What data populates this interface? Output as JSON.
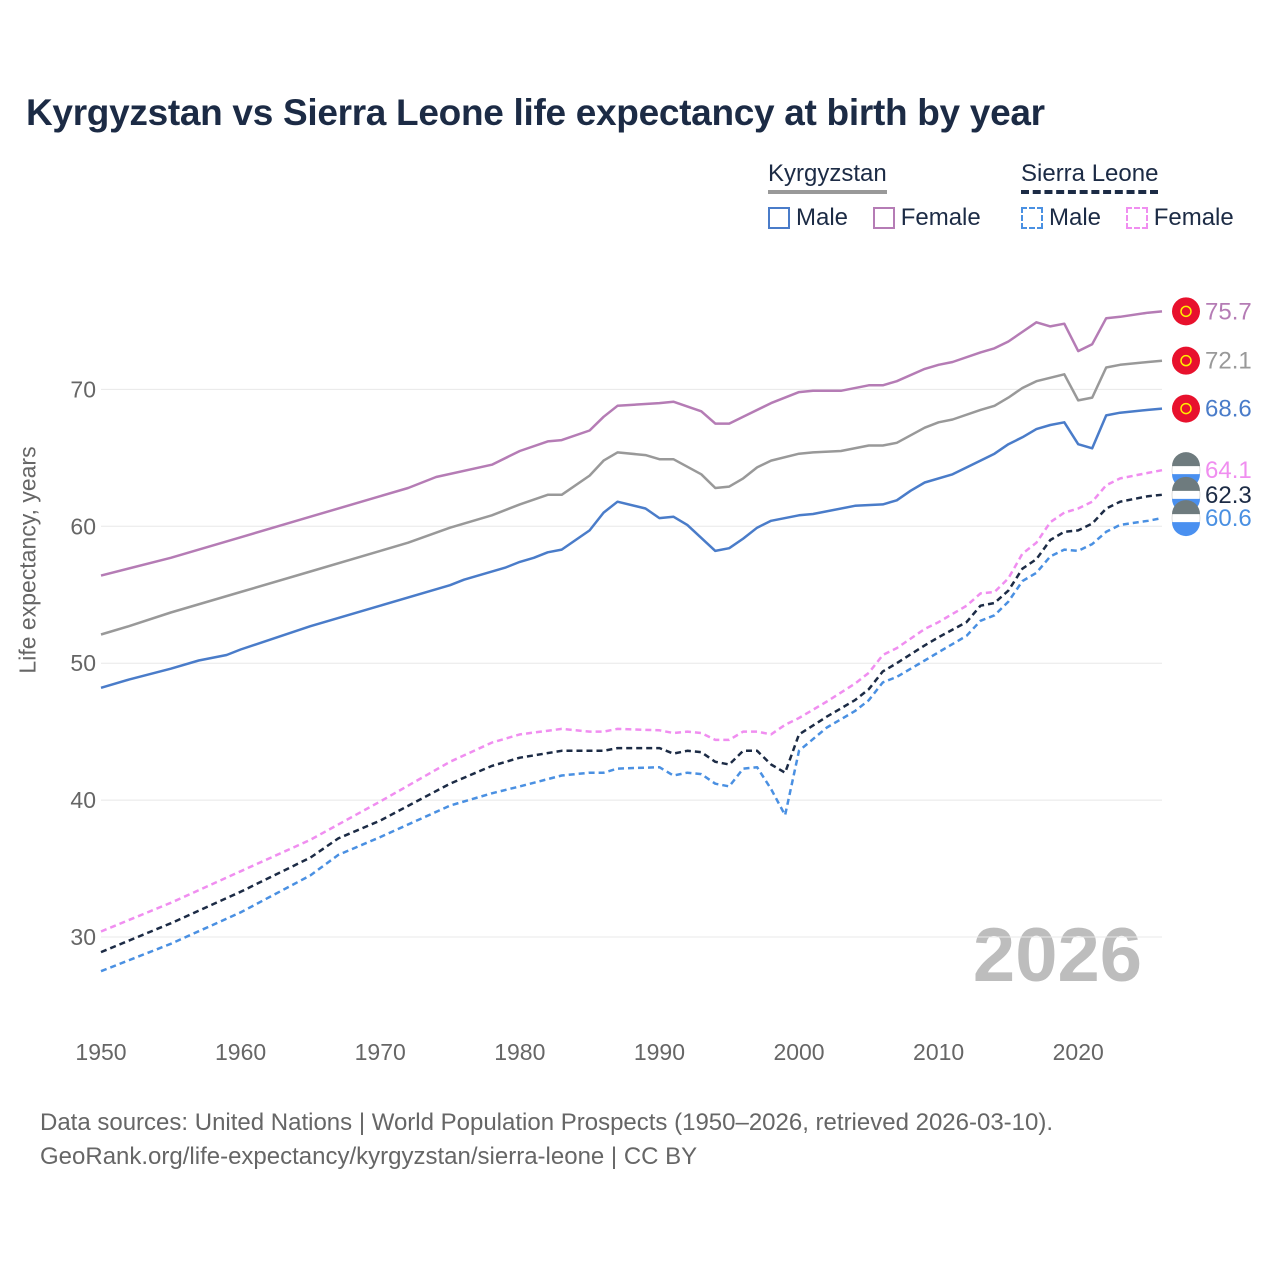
{
  "chart_data": {
    "type": "line",
    "title": "Kyrgyzstan vs Sierra Leone life expectancy at birth by year",
    "xlabel": "",
    "ylabel": "Life expectancy, years",
    "xlim": [
      1950,
      2026
    ],
    "ylim": [
      25,
      78
    ],
    "xticks": [
      1950,
      1960,
      1970,
      1980,
      1990,
      2000,
      2010,
      2020
    ],
    "yticks": [
      30,
      40,
      50,
      60,
      70
    ],
    "current_year": "2026",
    "legend": {
      "groups": [
        {
          "name": "Kyrgyzstan",
          "style": "solid",
          "color": "#999999",
          "items": [
            {
              "label": "Male",
              "color": "#4a7cc9"
            },
            {
              "label": "Female",
              "color": "#b57cb5"
            }
          ]
        },
        {
          "name": "Sierra Leone",
          "style": "dashed",
          "color": "#1c2b45",
          "items": [
            {
              "label": "Male",
              "color": "#4a90e2"
            },
            {
              "label": "Female",
              "color": "#f08ef0"
            }
          ]
        }
      ]
    },
    "series": [
      {
        "name": "Kyrgyzstan Female",
        "color": "#b57cb5",
        "dash": false,
        "end_label": "75.7",
        "flag": "kyrgyzstan",
        "points": [
          [
            1950,
            56.4
          ],
          [
            1955,
            57.7
          ],
          [
            1960,
            59.2
          ],
          [
            1965,
            60.7
          ],
          [
            1970,
            62.2
          ],
          [
            1972,
            62.8
          ],
          [
            1974,
            63.6
          ],
          [
            1978,
            64.5
          ],
          [
            1980,
            65.5
          ],
          [
            1982,
            66.2
          ],
          [
            1983,
            66.3
          ],
          [
            1985,
            67.0
          ],
          [
            1986,
            68.0
          ],
          [
            1987,
            68.8
          ],
          [
            1990,
            69.0
          ],
          [
            1991,
            69.1
          ],
          [
            1993,
            68.4
          ],
          [
            1994,
            67.5
          ],
          [
            1995,
            67.5
          ],
          [
            1996,
            68.0
          ],
          [
            1998,
            69.0
          ],
          [
            2000,
            69.8
          ],
          [
            2001,
            69.9
          ],
          [
            2003,
            69.9
          ],
          [
            2005,
            70.3
          ],
          [
            2006,
            70.3
          ],
          [
            2007,
            70.6
          ],
          [
            2009,
            71.5
          ],
          [
            2010,
            71.8
          ],
          [
            2011,
            72.0
          ],
          [
            2013,
            72.7
          ],
          [
            2014,
            73.0
          ],
          [
            2015,
            73.5
          ],
          [
            2016,
            74.2
          ],
          [
            2017,
            74.9
          ],
          [
            2018,
            74.6
          ],
          [
            2019,
            74.8
          ],
          [
            2020,
            72.8
          ],
          [
            2021,
            73.3
          ],
          [
            2022,
            75.2
          ],
          [
            2023,
            75.3
          ],
          [
            2025,
            75.6
          ],
          [
            2026,
            75.7
          ]
        ]
      },
      {
        "name": "Kyrgyzstan Total",
        "color": "#999999",
        "dash": false,
        "end_label": "72.1",
        "flag": "kyrgyzstan",
        "points": [
          [
            1950,
            52.1
          ],
          [
            1952,
            52.7
          ],
          [
            1955,
            53.7
          ],
          [
            1960,
            55.2
          ],
          [
            1965,
            56.7
          ],
          [
            1970,
            58.2
          ],
          [
            1972,
            58.8
          ],
          [
            1975,
            59.9
          ],
          [
            1978,
            60.8
          ],
          [
            1980,
            61.6
          ],
          [
            1982,
            62.3
          ],
          [
            1983,
            62.3
          ],
          [
            1985,
            63.7
          ],
          [
            1986,
            64.8
          ],
          [
            1987,
            65.4
          ],
          [
            1989,
            65.2
          ],
          [
            1990,
            64.9
          ],
          [
            1991,
            64.9
          ],
          [
            1993,
            63.8
          ],
          [
            1994,
            62.8
          ],
          [
            1995,
            62.9
          ],
          [
            1996,
            63.5
          ],
          [
            1997,
            64.3
          ],
          [
            1998,
            64.8
          ],
          [
            2000,
            65.3
          ],
          [
            2001,
            65.4
          ],
          [
            2003,
            65.5
          ],
          [
            2005,
            65.9
          ],
          [
            2006,
            65.9
          ],
          [
            2007,
            66.1
          ],
          [
            2009,
            67.2
          ],
          [
            2010,
            67.6
          ],
          [
            2011,
            67.8
          ],
          [
            2013,
            68.5
          ],
          [
            2014,
            68.8
          ],
          [
            2015,
            69.4
          ],
          [
            2016,
            70.1
          ],
          [
            2017,
            70.6
          ],
          [
            2019,
            71.1
          ],
          [
            2020,
            69.2
          ],
          [
            2021,
            69.4
          ],
          [
            2022,
            71.6
          ],
          [
            2023,
            71.8
          ],
          [
            2025,
            72.0
          ],
          [
            2026,
            72.1
          ]
        ]
      },
      {
        "name": "Kyrgyzstan Male",
        "color": "#4a7cc9",
        "dash": false,
        "end_label": "68.6",
        "flag": "kyrgyzstan",
        "points": [
          [
            1950,
            48.2
          ],
          [
            1952,
            48.8
          ],
          [
            1955,
            49.6
          ],
          [
            1957,
            50.2
          ],
          [
            1959,
            50.6
          ],
          [
            1960,
            51.0
          ],
          [
            1965,
            52.7
          ],
          [
            1970,
            54.2
          ],
          [
            1975,
            55.7
          ],
          [
            1976,
            56.1
          ],
          [
            1979,
            57.0
          ],
          [
            1980,
            57.4
          ],
          [
            1981,
            57.7
          ],
          [
            1982,
            58.1
          ],
          [
            1983,
            58.3
          ],
          [
            1985,
            59.7
          ],
          [
            1986,
            61.0
          ],
          [
            1987,
            61.8
          ],
          [
            1989,
            61.3
          ],
          [
            1990,
            60.6
          ],
          [
            1991,
            60.7
          ],
          [
            1992,
            60.1
          ],
          [
            1994,
            58.2
          ],
          [
            1995,
            58.4
          ],
          [
            1996,
            59.1
          ],
          [
            1997,
            59.9
          ],
          [
            1998,
            60.4
          ],
          [
            2000,
            60.8
          ],
          [
            2001,
            60.9
          ],
          [
            2004,
            61.5
          ],
          [
            2006,
            61.6
          ],
          [
            2007,
            61.9
          ],
          [
            2008,
            62.6
          ],
          [
            2009,
            63.2
          ],
          [
            2011,
            63.8
          ],
          [
            2013,
            64.8
          ],
          [
            2014,
            65.3
          ],
          [
            2015,
            66.0
          ],
          [
            2016,
            66.5
          ],
          [
            2017,
            67.1
          ],
          [
            2018,
            67.4
          ],
          [
            2019,
            67.6
          ],
          [
            2020,
            66.0
          ],
          [
            2021,
            65.7
          ],
          [
            2022,
            68.1
          ],
          [
            2023,
            68.3
          ],
          [
            2025,
            68.5
          ],
          [
            2026,
            68.6
          ]
        ]
      },
      {
        "name": "Sierra Leone Female",
        "color": "#f08ef0",
        "dash": true,
        "end_label": "64.1",
        "flag": "sierra-leone",
        "points": [
          [
            1950,
            30.4
          ],
          [
            1955,
            32.5
          ],
          [
            1960,
            34.8
          ],
          [
            1965,
            37.1
          ],
          [
            1970,
            39.9
          ],
          [
            1975,
            42.8
          ],
          [
            1978,
            44.2
          ],
          [
            1980,
            44.8
          ],
          [
            1983,
            45.2
          ],
          [
            1985,
            45.0
          ],
          [
            1986,
            45.0
          ],
          [
            1987,
            45.2
          ],
          [
            1990,
            45.1
          ],
          [
            1991,
            44.9
          ],
          [
            1992,
            45.0
          ],
          [
            1993,
            44.9
          ],
          [
            1994,
            44.4
          ],
          [
            1995,
            44.4
          ],
          [
            1996,
            45.0
          ],
          [
            1997,
            45.0
          ],
          [
            1998,
            44.8
          ],
          [
            1999,
            45.5
          ],
          [
            2000,
            46.0
          ],
          [
            2002,
            47.2
          ],
          [
            2004,
            48.5
          ],
          [
            2005,
            49.3
          ],
          [
            2006,
            50.6
          ],
          [
            2007,
            51.1
          ],
          [
            2009,
            52.5
          ],
          [
            2010,
            53.0
          ],
          [
            2012,
            54.2
          ],
          [
            2013,
            55.1
          ],
          [
            2014,
            55.2
          ],
          [
            2015,
            56.2
          ],
          [
            2016,
            58.0
          ],
          [
            2017,
            58.8
          ],
          [
            2018,
            60.3
          ],
          [
            2019,
            61.0
          ],
          [
            2020,
            61.3
          ],
          [
            2021,
            61.8
          ],
          [
            2022,
            63.0
          ],
          [
            2023,
            63.5
          ],
          [
            2025,
            63.9
          ],
          [
            2026,
            64.1
          ]
        ]
      },
      {
        "name": "Sierra Leone Total",
        "color": "#1c2b45",
        "dash": true,
        "end_label": "62.3",
        "flag": "sierra-leone",
        "points": [
          [
            1950,
            28.9
          ],
          [
            1955,
            31.0
          ],
          [
            1960,
            33.3
          ],
          [
            1965,
            35.8
          ],
          [
            1967,
            37.2
          ],
          [
            1970,
            38.5
          ],
          [
            1975,
            41.2
          ],
          [
            1978,
            42.5
          ],
          [
            1980,
            43.1
          ],
          [
            1983,
            43.6
          ],
          [
            1985,
            43.6
          ],
          [
            1986,
            43.6
          ],
          [
            1987,
            43.8
          ],
          [
            1990,
            43.8
          ],
          [
            1991,
            43.4
          ],
          [
            1992,
            43.6
          ],
          [
            1993,
            43.5
          ],
          [
            1994,
            42.8
          ],
          [
            1995,
            42.6
          ],
          [
            1996,
            43.6
          ],
          [
            1997,
            43.6
          ],
          [
            1998,
            42.6
          ],
          [
            1999,
            42.0
          ],
          [
            2000,
            44.8
          ],
          [
            2002,
            46.1
          ],
          [
            2004,
            47.3
          ],
          [
            2005,
            48.1
          ],
          [
            2006,
            49.4
          ],
          [
            2007,
            50.0
          ],
          [
            2009,
            51.3
          ],
          [
            2010,
            51.9
          ],
          [
            2012,
            53.0
          ],
          [
            2013,
            54.2
          ],
          [
            2014,
            54.4
          ],
          [
            2015,
            55.3
          ],
          [
            2016,
            56.9
          ],
          [
            2017,
            57.6
          ],
          [
            2018,
            59.0
          ],
          [
            2019,
            59.6
          ],
          [
            2020,
            59.7
          ],
          [
            2021,
            60.2
          ],
          [
            2022,
            61.3
          ],
          [
            2023,
            61.8
          ],
          [
            2025,
            62.2
          ],
          [
            2026,
            62.3
          ]
        ]
      },
      {
        "name": "Sierra Leone Male",
        "color": "#4a90e2",
        "dash": true,
        "end_label": "60.6",
        "flag": "sierra-leone",
        "points": [
          [
            1950,
            27.5
          ],
          [
            1955,
            29.5
          ],
          [
            1960,
            31.8
          ],
          [
            1965,
            34.5
          ],
          [
            1967,
            36.0
          ],
          [
            1970,
            37.3
          ],
          [
            1975,
            39.6
          ],
          [
            1978,
            40.5
          ],
          [
            1980,
            41.0
          ],
          [
            1983,
            41.8
          ],
          [
            1985,
            42.0
          ],
          [
            1986,
            42.0
          ],
          [
            1987,
            42.3
          ],
          [
            1990,
            42.4
          ],
          [
            1991,
            41.8
          ],
          [
            1992,
            42.0
          ],
          [
            1993,
            41.9
          ],
          [
            1994,
            41.2
          ],
          [
            1995,
            41.0
          ],
          [
            1996,
            42.3
          ],
          [
            1997,
            42.4
          ],
          [
            1998,
            40.8
          ],
          [
            1999,
            38.9
          ],
          [
            2000,
            43.6
          ],
          [
            2002,
            45.3
          ],
          [
            2004,
            46.5
          ],
          [
            2005,
            47.3
          ],
          [
            2006,
            48.6
          ],
          [
            2007,
            49.0
          ],
          [
            2009,
            50.2
          ],
          [
            2010,
            50.8
          ],
          [
            2012,
            52.0
          ],
          [
            2013,
            53.1
          ],
          [
            2014,
            53.5
          ],
          [
            2015,
            54.5
          ],
          [
            2016,
            56.0
          ],
          [
            2017,
            56.6
          ],
          [
            2018,
            57.8
          ],
          [
            2019,
            58.3
          ],
          [
            2020,
            58.2
          ],
          [
            2021,
            58.7
          ],
          [
            2022,
            59.6
          ],
          [
            2023,
            60.1
          ],
          [
            2025,
            60.4
          ],
          [
            2026,
            60.6
          ]
        ]
      }
    ]
  },
  "source": {
    "line1": "Data sources: United Nations | World Population Prospects (1950–2026, retrieved 2026-03-10).",
    "line2": "GeoRank.org/life-expectancy/kyrgyzstan/sierra-leone | CC BY"
  }
}
